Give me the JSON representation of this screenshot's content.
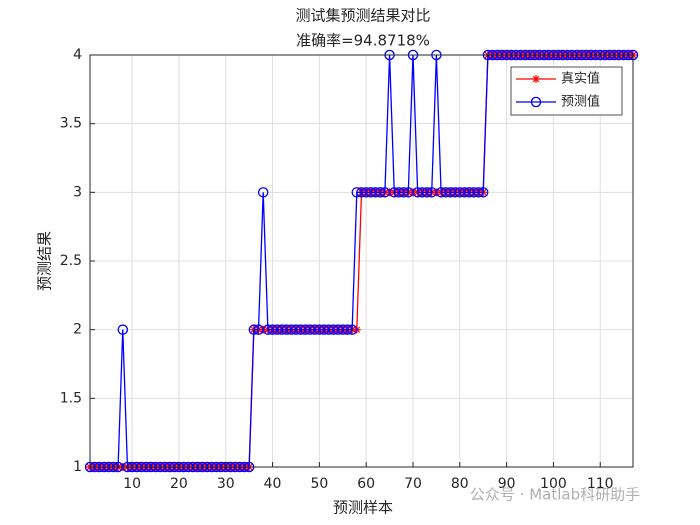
{
  "chart_data": {
    "type": "line",
    "title": "测试集预测结果对比",
    "subtitle": "准确率=94.8718%",
    "xlabel": "预测样本",
    "ylabel": "预测结果",
    "x": [
      1,
      2,
      3,
      4,
      5,
      6,
      7,
      8,
      9,
      10,
      11,
      12,
      13,
      14,
      15,
      16,
      17,
      18,
      19,
      20,
      21,
      22,
      23,
      24,
      25,
      26,
      27,
      28,
      29,
      30,
      31,
      32,
      33,
      34,
      35,
      36,
      37,
      38,
      39,
      40,
      41,
      42,
      43,
      44,
      45,
      46,
      47,
      48,
      49,
      50,
      51,
      52,
      53,
      54,
      55,
      56,
      57,
      58,
      59,
      60,
      61,
      62,
      63,
      64,
      65,
      66,
      67,
      68,
      69,
      70,
      71,
      72,
      73,
      74,
      75,
      76,
      77,
      78,
      79,
      80,
      81,
      82,
      83,
      84,
      85,
      86,
      87,
      88,
      89,
      90,
      91,
      92,
      93,
      94,
      95,
      96,
      97,
      98,
      99,
      100,
      101,
      102,
      103,
      104,
      105,
      106,
      107,
      108,
      109,
      110,
      111,
      112,
      113,
      114,
      115,
      116,
      117
    ],
    "series": [
      {
        "name": "真实值",
        "color": "#ff0000",
        "marker": "asterisk",
        "values": [
          1,
          1,
          1,
          1,
          1,
          1,
          1,
          1,
          1,
          1,
          1,
          1,
          1,
          1,
          1,
          1,
          1,
          1,
          1,
          1,
          1,
          1,
          1,
          1,
          1,
          1,
          1,
          1,
          1,
          1,
          1,
          1,
          1,
          1,
          1,
          2,
          2,
          2,
          2,
          2,
          2,
          2,
          2,
          2,
          2,
          2,
          2,
          2,
          2,
          2,
          2,
          2,
          2,
          2,
          2,
          2,
          2,
          2,
          3,
          3,
          3,
          3,
          3,
          3,
          3,
          3,
          3,
          3,
          3,
          3,
          3,
          3,
          3,
          3,
          3,
          3,
          3,
          3,
          3,
          3,
          3,
          3,
          3,
          3,
          3,
          4,
          4,
          4,
          4,
          4,
          4,
          4,
          4,
          4,
          4,
          4,
          4,
          4,
          4,
          4,
          4,
          4,
          4,
          4,
          4,
          4,
          4,
          4,
          4,
          4,
          4,
          4,
          4,
          4,
          4,
          4,
          4
        ]
      },
      {
        "name": "预测值",
        "color": "#0000ff",
        "marker": "circle",
        "values": [
          1,
          1,
          1,
          1,
          1,
          1,
          1,
          2,
          1,
          1,
          1,
          1,
          1,
          1,
          1,
          1,
          1,
          1,
          1,
          1,
          1,
          1,
          1,
          1,
          1,
          1,
          1,
          1,
          1,
          1,
          1,
          1,
          1,
          1,
          1,
          2,
          2,
          3,
          2,
          2,
          2,
          2,
          2,
          2,
          2,
          2,
          2,
          2,
          2,
          2,
          2,
          2,
          2,
          2,
          2,
          2,
          2,
          3,
          3,
          3,
          3,
          3,
          3,
          3,
          4,
          3,
          3,
          3,
          3,
          4,
          3,
          3,
          3,
          3,
          4,
          3,
          3,
          3,
          3,
          3,
          3,
          3,
          3,
          3,
          3,
          4,
          4,
          4,
          4,
          4,
          4,
          4,
          4,
          4,
          4,
          4,
          4,
          4,
          4,
          4,
          4,
          4,
          4,
          4,
          4,
          4,
          4,
          4,
          4,
          4,
          4,
          4,
          4,
          4,
          4,
          4,
          4
        ]
      }
    ],
    "xlim": [
      1,
      117
    ],
    "xticks": [
      10,
      20,
      30,
      40,
      50,
      60,
      70,
      80,
      90,
      100,
      110
    ],
    "ylim": [
      1,
      4
    ],
    "yticks": [
      1,
      1.5,
      2,
      2.5,
      3,
      3.5,
      4
    ],
    "grid": true,
    "legend": "northeast"
  },
  "watermark": "公众号 · Matlab科研助手"
}
